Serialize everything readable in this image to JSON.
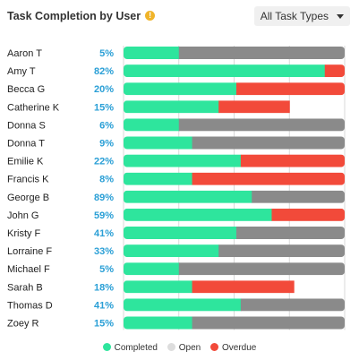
{
  "title": "Task Completion by User",
  "info_icon": "info-icon",
  "filter": {
    "label": "All Task Types",
    "icon": "chevron-down-icon"
  },
  "colors": {
    "completed": "#2ee59d",
    "open": "#8a8a8a",
    "overdue": "#f24a3a",
    "pct": "#2a9fd6",
    "grid": "#d9d9d9"
  },
  "legend": [
    {
      "label": "Completed",
      "key": "completed",
      "color": "#2ee59d"
    },
    {
      "label": "Open",
      "key": "open",
      "color": "#dddddd"
    },
    {
      "label": "Overdue",
      "key": "overdue",
      "color": "#f24a3a"
    }
  ],
  "chart_data": {
    "type": "bar",
    "orientation": "horizontal",
    "stacked": true,
    "title": "Task Completion by User",
    "xlim": [
      0,
      100
    ],
    "grid": true,
    "legend_position": "bottom",
    "categories": [
      "Aaron T",
      "Amy T",
      "Becca G",
      "Catherine K",
      "Donna S",
      "Donna T",
      "Emilie K",
      "Francis K",
      "George B",
      "John G",
      "Kristy F",
      "Lorraine F",
      "Michael F",
      "Sarah B",
      "Thomas D",
      "Zoey R"
    ],
    "percent_labels": [
      "5%",
      "82%",
      "20%",
      "15%",
      "6%",
      "9%",
      "22%",
      "8%",
      "89%",
      "59%",
      "41%",
      "33%",
      "5%",
      "18%",
      "41%",
      "15%"
    ],
    "series": [
      {
        "name": "Completed",
        "values": [
          25,
          91,
          51,
          43,
          25,
          31,
          53,
          31,
          58,
          67,
          51,
          43,
          25,
          31,
          53,
          31
        ]
      },
      {
        "name": "Open",
        "values": [
          75,
          0,
          0,
          0,
          75,
          69,
          0,
          0,
          42,
          0,
          49,
          57,
          75,
          0,
          47,
          69
        ]
      },
      {
        "name": "Overdue",
        "values": [
          0,
          9,
          49,
          32,
          0,
          0,
          47,
          69,
          0,
          33,
          0,
          0,
          0,
          46,
          0,
          0
        ]
      }
    ]
  }
}
